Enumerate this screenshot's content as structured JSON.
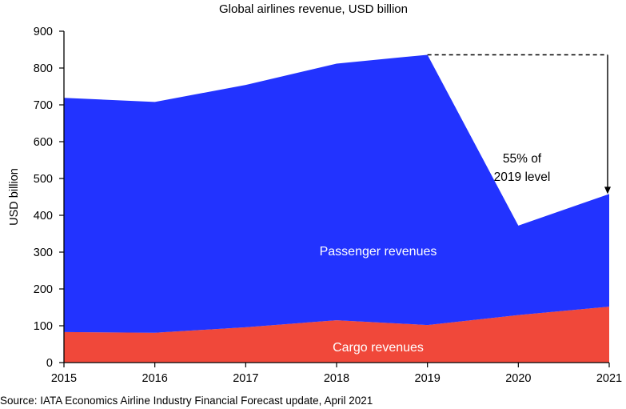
{
  "chart_data": {
    "type": "area",
    "stacked": true,
    "title": "Global airlines revenue, USD billion",
    "ylabel": "USD billion",
    "xlabel": "",
    "x": [
      "2015",
      "2016",
      "2017",
      "2018",
      "2019",
      "2020",
      "2021"
    ],
    "ylim": [
      0,
      900
    ],
    "yticks": [
      "0",
      "100",
      "200",
      "300",
      "400",
      "500",
      "600",
      "700",
      "800",
      "900"
    ],
    "grid": false,
    "legend": "none",
    "series": [
      {
        "name": "Cargo revenues",
        "color": "#f0483a",
        "values": [
          83,
          81,
          96,
          115,
          102,
          129,
          152
        ]
      },
      {
        "name": "Passenger revenues",
        "color": "#2233ff",
        "values": [
          636,
          627,
          658,
          697,
          734,
          243,
          306
        ]
      }
    ],
    "totals": [
      719,
      708,
      754,
      812,
      836,
      372,
      458
    ],
    "annotation": {
      "text_line1": "55% of",
      "text_line2": "2019 level",
      "from_x": "2019",
      "to_x": "2021",
      "reference_value": 836
    },
    "source": "Source: IATA Economics Airline Industry Financial Forecast update, April 2021"
  }
}
